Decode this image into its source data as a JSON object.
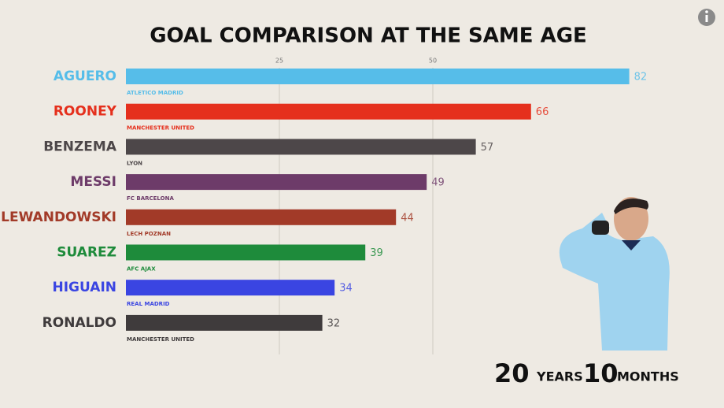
{
  "chart_data": {
    "type": "bar",
    "orientation": "horizontal",
    "title": "GOAL COMPARISON AT THE SAME AGE",
    "categories": [
      "AGUERO",
      "ROONEY",
      "BENZEMA",
      "MESSI",
      "LEWANDOWSKI",
      "SUAREZ",
      "HIGUAIN",
      "RONALDO"
    ],
    "clubs": [
      "ATLETICO MADRID",
      "MANCHESTER UNITED",
      "LYON",
      "FC BARCELONA",
      "LECH POZNAN",
      "AFC AJAX",
      "REAL MADRID",
      "MANCHESTER UNITED"
    ],
    "values": [
      82,
      66,
      57,
      49,
      44,
      39,
      34,
      32
    ],
    "colors": [
      "#56bde9",
      "#e5301d",
      "#4d4749",
      "#6d3b69",
      "#a23a28",
      "#1e8b3b",
      "#3a45e2",
      "#3f3b3c"
    ],
    "xlim": [
      0,
      95
    ],
    "xticks": [
      25,
      50
    ],
    "grid": true,
    "age": {
      "years": 20,
      "years_label": "YEARS",
      "months": 10,
      "months_label": "MONTHS"
    }
  }
}
